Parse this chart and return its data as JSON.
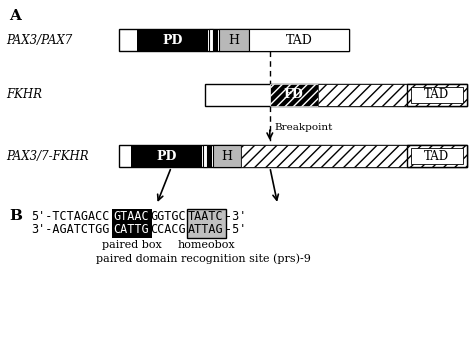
{
  "title_A": "A",
  "title_B": "B",
  "label_pax37": "PAX3/PAX7",
  "label_fkhr": "FKHR",
  "label_pax37fkhr": "PAX3/7-FKHR",
  "breakpoint_label": "Breakpoint",
  "prefix1": "5'-TCTAGACC",
  "black1": "GTAAC",
  "mid1": "GGTGC",
  "box1": "TAATC",
  "suffix1": "-3'",
  "prefix2": "3'-AGATCTGG",
  "black2": "CATTG",
  "mid2": "CCACG",
  "box2": "ATTAG",
  "suffix2": "-5'",
  "paired_box_label": "paired box",
  "homeobox_label": "homeobox",
  "prs_label": "paired domain recognition site (prs)-9",
  "bg_color": "#ffffff"
}
